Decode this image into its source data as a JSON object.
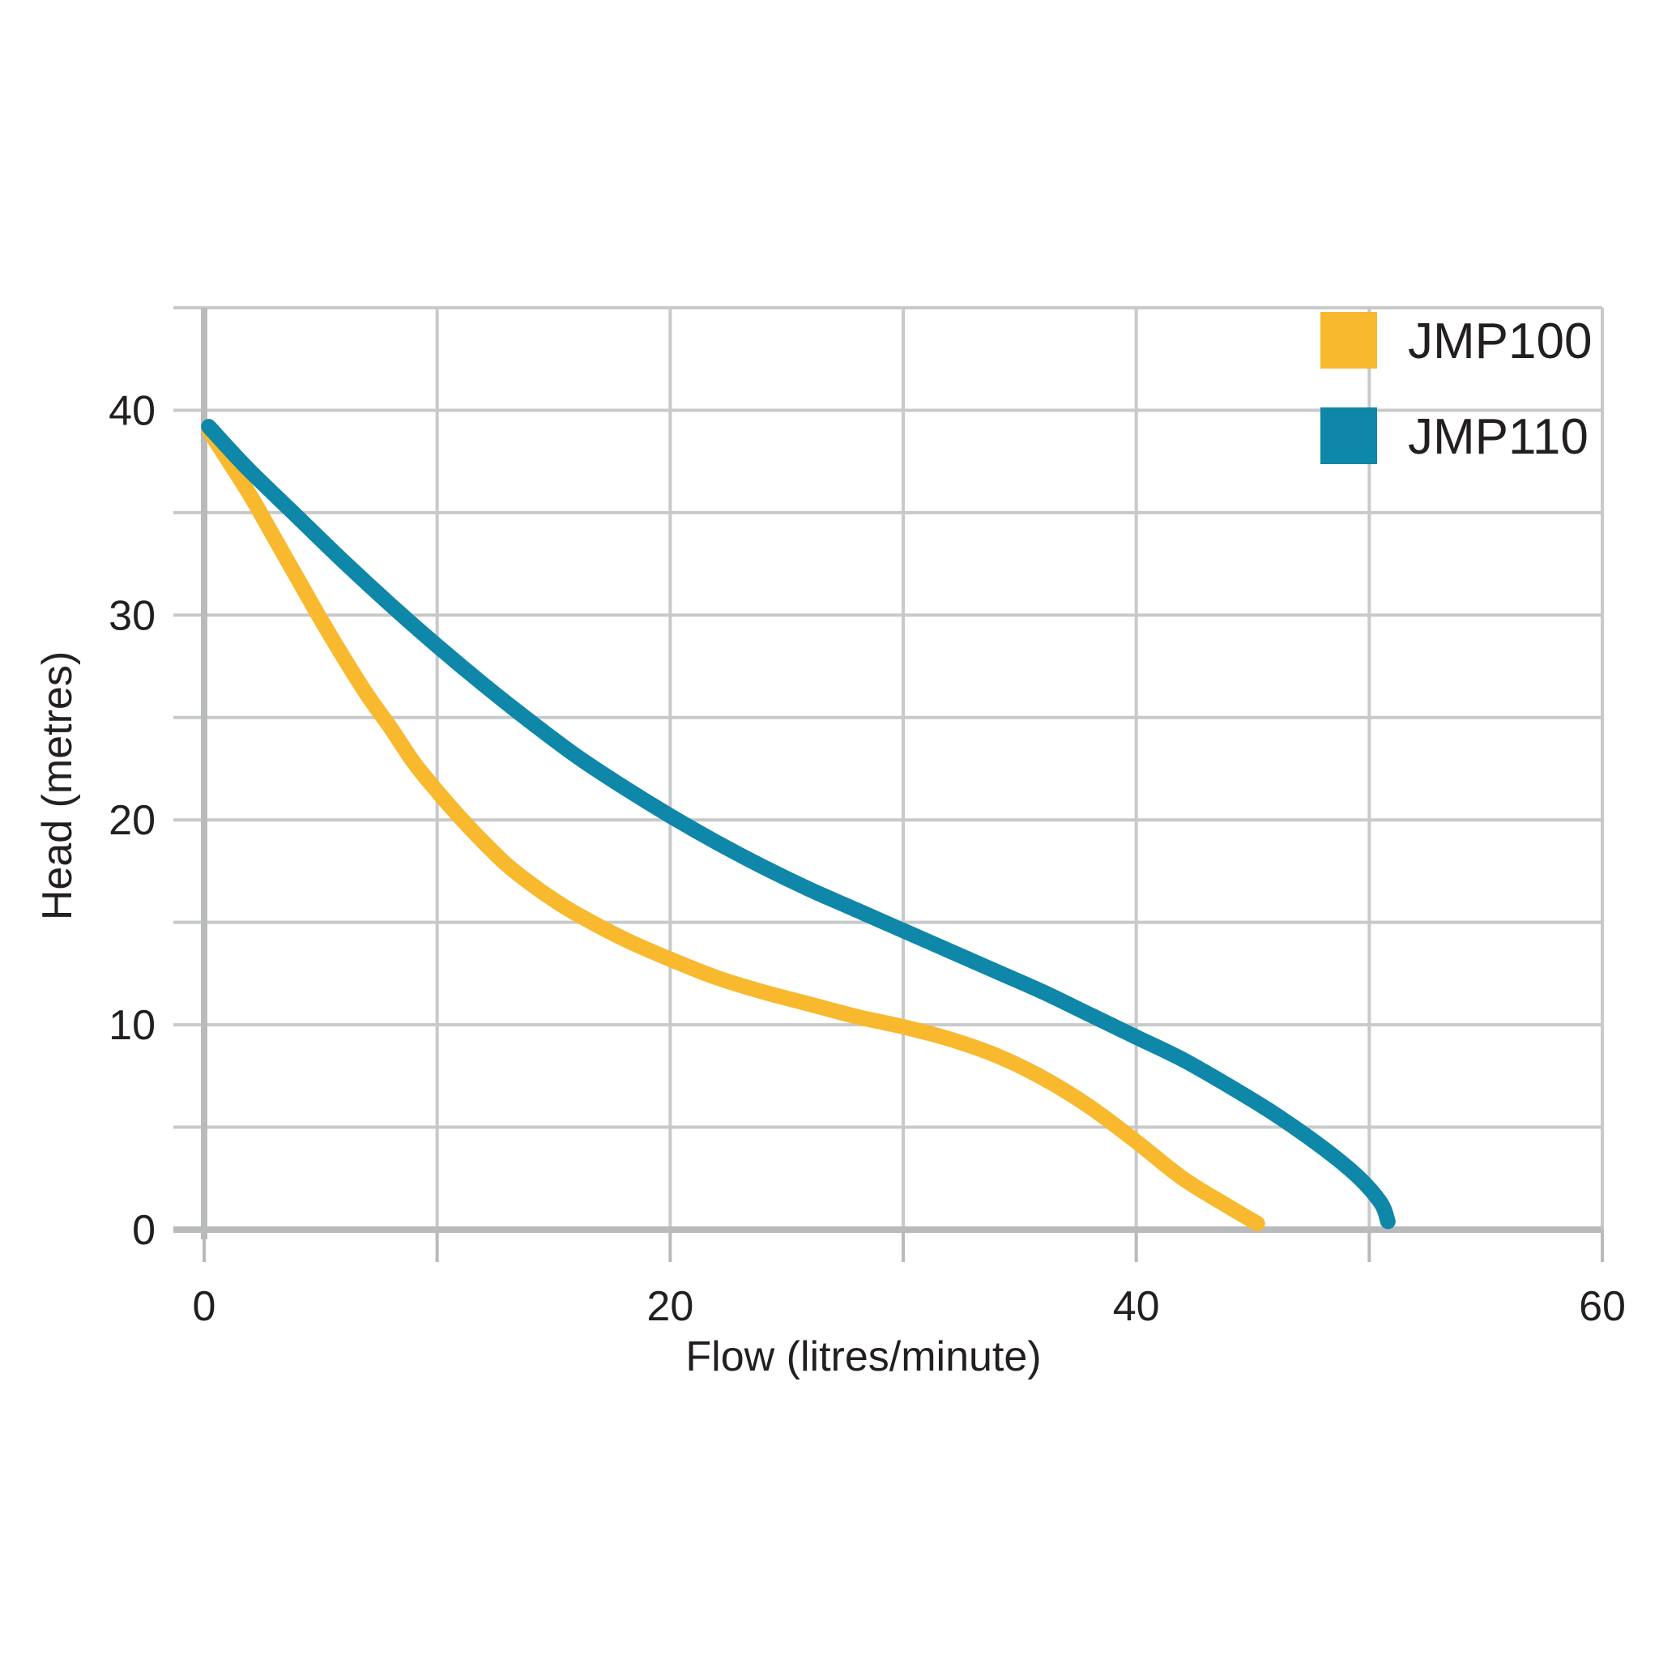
{
  "chart_data": {
    "type": "line",
    "title": "",
    "xlabel": "Flow (litres/minute)",
    "ylabel": "Head (metres)",
    "xlim": [
      0,
      60
    ],
    "ylim": [
      0,
      45
    ],
    "x_ticks": [
      0,
      20,
      40,
      60
    ],
    "x_tick_labels": [
      "0",
      "20",
      "40",
      "60"
    ],
    "y_ticks": [
      0,
      10,
      20,
      30,
      40
    ],
    "y_tick_labels": [
      "0",
      "10",
      "20",
      "30",
      "40"
    ],
    "grid": true,
    "legend_position": "top-right",
    "series": [
      {
        "name": "JMP100",
        "color": "#f8b92e",
        "x": [
          0.2,
          1.0,
          2.0,
          3.0,
          4.0,
          5.0,
          6.0,
          7.0,
          8.0,
          9.0,
          10.0,
          11.0,
          12.0,
          13.0,
          14.0,
          15.0,
          16.0,
          18.0,
          20.0,
          22.0,
          24.0,
          26.0,
          28.0,
          30.0,
          32.0,
          34.0,
          36.0,
          38.0,
          40.0,
          42.0,
          44.0,
          45.2
        ],
        "y": [
          39.0,
          37.6,
          35.8,
          33.8,
          31.8,
          29.8,
          27.9,
          26.1,
          24.5,
          22.8,
          21.4,
          20.1,
          18.9,
          17.8,
          16.9,
          16.1,
          15.4,
          14.2,
          13.2,
          12.3,
          11.6,
          11.0,
          10.4,
          9.9,
          9.3,
          8.5,
          7.4,
          6.0,
          4.3,
          2.5,
          1.1,
          0.3
        ]
      },
      {
        "name": "JMP110",
        "color": "#0e87a8",
        "x": [
          0.2,
          1.0,
          2.0,
          4.0,
          6.0,
          8.0,
          10.0,
          12.0,
          14.0,
          16.0,
          18.0,
          20.0,
          22.0,
          24.0,
          26.0,
          28.0,
          30.0,
          32.0,
          34.0,
          36.0,
          38.0,
          40.0,
          42.0,
          44.0,
          46.0,
          48.0,
          49.5,
          50.5,
          50.8
        ],
        "y": [
          39.2,
          38.2,
          37.0,
          34.8,
          32.6,
          30.5,
          28.5,
          26.6,
          24.8,
          23.1,
          21.6,
          20.2,
          18.9,
          17.7,
          16.6,
          15.6,
          14.6,
          13.6,
          12.6,
          11.6,
          10.5,
          9.4,
          8.3,
          7.0,
          5.6,
          4.0,
          2.6,
          1.3,
          0.4
        ]
      }
    ]
  }
}
